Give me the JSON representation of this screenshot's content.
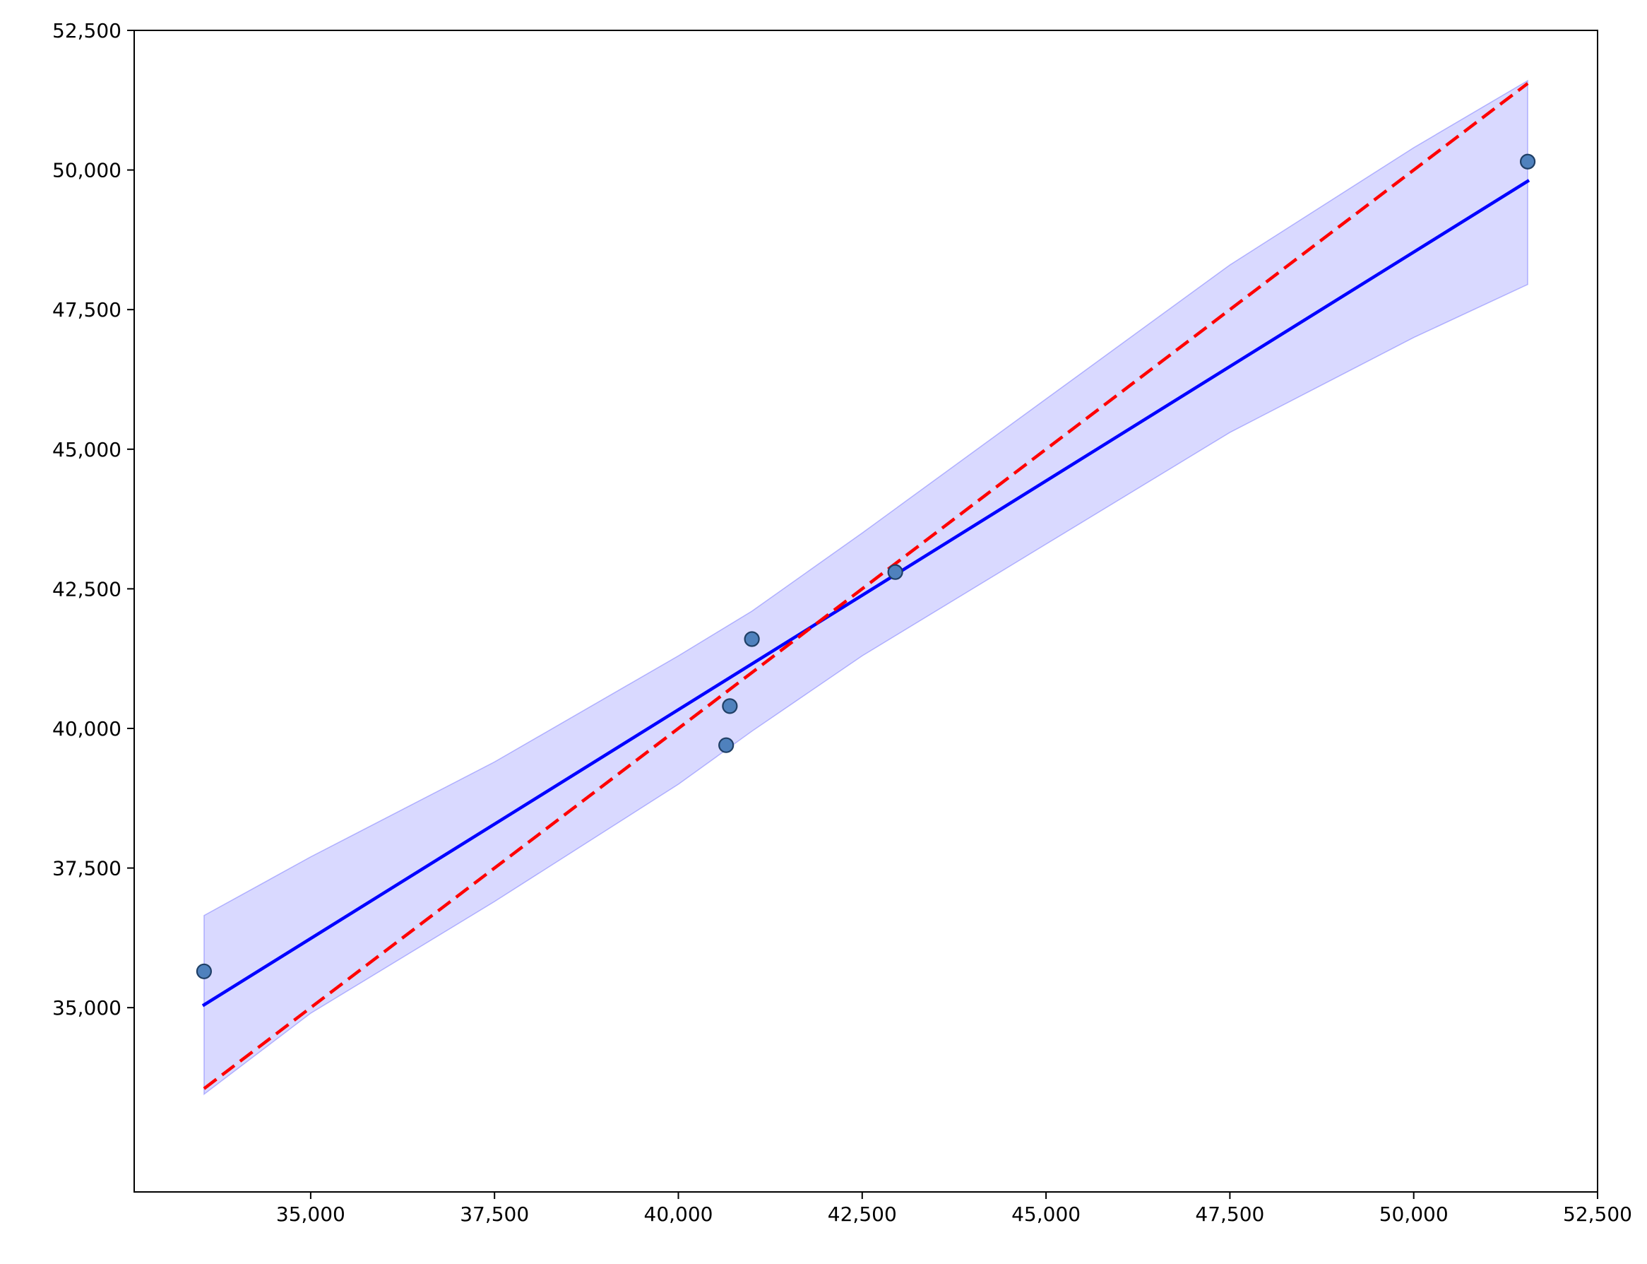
{
  "chart_data": {
    "type": "scatter",
    "title": "",
    "xlabel": "",
    "ylabel": "",
    "xlim": [
      32600,
      52500
    ],
    "ylim": [
      31700,
      52500
    ],
    "grid": false,
    "x_ticks": [
      35000,
      37500,
      40000,
      42500,
      45000,
      47500,
      50000,
      52500
    ],
    "y_ticks": [
      35000,
      37500,
      40000,
      42500,
      45000,
      47500,
      50000,
      52500
    ],
    "x_tick_labels": [
      "35,000",
      "37,500",
      "40,000",
      "42,500",
      "45,000",
      "47,500",
      "50,000",
      "52,500"
    ],
    "y_tick_labels": [
      "35,000",
      "37,500",
      "40,000",
      "42,500",
      "45,000",
      "47,500",
      "50,000",
      "52,500"
    ],
    "points": [
      {
        "x": 33550,
        "y": 35650
      },
      {
        "x": 40650,
        "y": 39700
      },
      {
        "x": 40700,
        "y": 40400
      },
      {
        "x": 41000,
        "y": 41600
      },
      {
        "x": 42950,
        "y": 42800
      },
      {
        "x": 51550,
        "y": 50150
      }
    ],
    "fit_line": {
      "color": "#0000ff",
      "style": "solid",
      "x": [
        33550,
        51550
      ],
      "y": [
        35050,
        49800
      ]
    },
    "identity_line": {
      "color": "#ff0000",
      "style": "dashed",
      "x": [
        33550,
        51550
      ],
      "y": [
        33550,
        51550
      ]
    },
    "confidence_band": {
      "color": "#0000ff",
      "opacity": 0.15,
      "x": [
        33550,
        35000,
        37500,
        40000,
        41000,
        42500,
        45000,
        47500,
        50000,
        51550
      ],
      "upper": [
        36650,
        37700,
        39400,
        41300,
        42100,
        43500,
        45900,
        48300,
        50400,
        51600
      ],
      "lower": [
        33450,
        34900,
        36900,
        39000,
        39950,
        41300,
        43300,
        45300,
        47000,
        47950
      ]
    },
    "colors": {
      "points_fill": "#4f81bd",
      "points_edge": "#1f3f66"
    }
  }
}
